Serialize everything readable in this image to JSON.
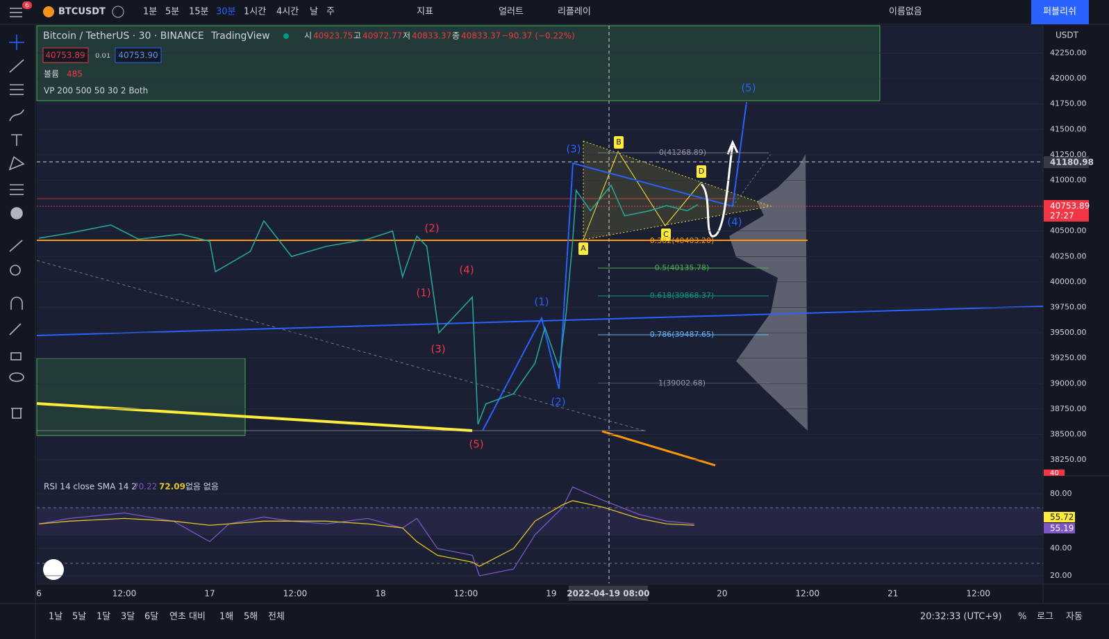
{
  "top_toolbar": {
    "symbol": "BTCUSDT",
    "badge": "6",
    "intervals": [
      "1분",
      "5분",
      "15분",
      "30분",
      "1시간",
      "4시간",
      "날",
      "주"
    ],
    "indicators": "지표",
    "alert": "얼러트",
    "replay": "리플레이",
    "layout_name": "이름없음",
    "publish": "퍼블리쉬"
  },
  "legend": {
    "title": "Bitcoin / TetherUS · 30 · BINANCE",
    "source": "TradingView",
    "ohlc": [
      {
        "label": "시",
        "value": "40923.75"
      },
      {
        "label": "고",
        "value": "40972.77"
      },
      {
        "label": "저",
        "value": "40833.37"
      },
      {
        "label": "종",
        "value": "40833.37"
      }
    ],
    "change": "−90.37 (−0.22%)",
    "bid": "40753.89",
    "spread": "0.01",
    "ask": "40753.90",
    "volume_label": "볼륨",
    "volume": "485",
    "vp": "VP 200 500 50 30 2 Both"
  },
  "price_axis": {
    "currency": "USDT",
    "crosshair_price": "41180.98",
    "last_price": "40753.89",
    "countdown": "27:27",
    "bottom_label": "40"
  },
  "annotations": {
    "waves": [
      "(1)",
      "(2)",
      "(3)",
      "(4)",
      "(5)",
      "(1)",
      "(2)",
      "(3)",
      "(4)",
      "(5)"
    ],
    "points": [
      "A",
      "B",
      "C",
      "D"
    ],
    "fib": [
      "0(41268.89)",
      "0.382(40403.20)",
      "0.5(40135.78)",
      "0.618(39868.37)",
      "0.786(39487.65)",
      "1(39002.68)"
    ]
  },
  "rsi_legend": {
    "title": "RSI 14 close SMA 14 2",
    "rsi": "70.22",
    "sma": "72.09",
    "extra": "없음 없음",
    "label_a": "55.72",
    "label_b": "55.19"
  },
  "chart_data": [
    {
      "type": "line",
      "color": "#26a69a",
      "x": [
        0,
        4.3,
        10.1,
        14,
        19.9,
        24,
        24.8,
        29.7,
        31.6,
        35.5,
        40.4,
        46.2,
        49.7,
        51.1,
        53.1,
        54.5,
        56.2,
        58.9,
        60.9,
        61.7,
        62.8,
        66.7,
        69.7,
        71.1,
        73.1,
        74.1,
        75,
        75.5,
        77.5,
        80.4,
        82.3,
        85.8,
        88.2,
        91.1,
        92.6
      ],
      "values": [
        40430,
        40480,
        40560,
        40420,
        40470,
        40400,
        40100,
        40300,
        40600,
        40250,
        40350,
        40420,
        40500,
        40050,
        40450,
        40350,
        39500,
        39700,
        39850,
        38600,
        38800,
        38900,
        39200,
        39550,
        39150,
        39700,
        40400,
        40900,
        40700,
        40950,
        40650,
        40700,
        40750,
        40700,
        40760
      ],
      "xlim": [
        -0.3,
        141.1
      ],
      "ylim": [
        38100,
        42520
      ],
      "yticks": [
        {
          "value": 38250,
          "label": "38250.00"
        },
        {
          "value": 38500,
          "label": "38500.00"
        },
        {
          "value": 38750,
          "label": "38750.00"
        },
        {
          "value": 39000,
          "label": "39000.00"
        },
        {
          "value": 39250,
          "label": "39250.00"
        },
        {
          "value": 39500,
          "label": "39500.00"
        },
        {
          "value": 39750,
          "label": "39750.00"
        },
        {
          "value": 40000,
          "label": "40000.00"
        },
        {
          "value": 40250,
          "label": "40250.00"
        },
        {
          "value": 40500,
          "label": "40500.00"
        },
        {
          "value": 41000,
          "label": "41000.00"
        },
        {
          "value": 41250,
          "label": "41250.00"
        },
        {
          "value": 41500,
          "label": "41500.00"
        },
        {
          "value": 41750,
          "label": "41750.00"
        },
        {
          "value": 42000,
          "label": "42000.00"
        },
        {
          "value": 42250,
          "label": "42250.00"
        }
      ],
      "xticks": [
        {
          "value": 0,
          "label": "6"
        },
        {
          "value": 12,
          "label": "12:00"
        },
        {
          "value": 24,
          "label": "17"
        },
        {
          "value": 36,
          "label": "12:00"
        },
        {
          "value": 48,
          "label": "18"
        },
        {
          "value": 60,
          "label": "12:00"
        },
        {
          "value": 72,
          "label": "19"
        },
        {
          "value": 80,
          "label": "2022-04-19  08:00"
        },
        {
          "value": 96,
          "label": "20"
        },
        {
          "value": 108,
          "label": "12:00"
        },
        {
          "value": 120,
          "label": "21"
        },
        {
          "value": 132,
          "label": "12:00"
        }
      ]
    },
    {
      "type": "line",
      "x": [
        0,
        4.3,
        12,
        18.9,
        24,
        26.7,
        31.6,
        35.5,
        40.4,
        46.2,
        51.1,
        53.1,
        56,
        60.9,
        61.9,
        66.7,
        69.7,
        73.6,
        75,
        79.4,
        84.3,
        88.2,
        92.1
      ],
      "series": [
        {
          "name": "RSI",
          "color": "#7e57c2",
          "values": [
            58,
            62,
            66,
            60,
            45,
            58,
            63,
            60,
            58,
            62,
            55,
            62,
            40,
            35,
            20,
            25,
            50,
            70,
            85,
            75,
            65,
            60,
            58
          ]
        },
        {
          "name": "SMA",
          "color": "#e6c229",
          "values": [
            58,
            60,
            62,
            60,
            57,
            58,
            60,
            60,
            60,
            58,
            55,
            45,
            35,
            30,
            27,
            40,
            60,
            72,
            75,
            70,
            62,
            58,
            57
          ]
        }
      ],
      "xlim": [
        -0.3,
        141.1
      ],
      "ylim": [
        14.4,
        92.7
      ],
      "yticks": [
        {
          "value": 20,
          "label": "20.00"
        },
        {
          "value": 40,
          "label": "40.00"
        },
        {
          "value": 80,
          "label": "80.00"
        }
      ]
    }
  ],
  "bottom_bar": {
    "ranges": [
      "1날",
      "5날",
      "1달",
      "3달",
      "6달",
      "연초 대비",
      "1해",
      "5해",
      "전체"
    ],
    "clock": "20:32:33 (UTC+9)",
    "percent": "%",
    "log": "로그",
    "auto": "자동"
  }
}
